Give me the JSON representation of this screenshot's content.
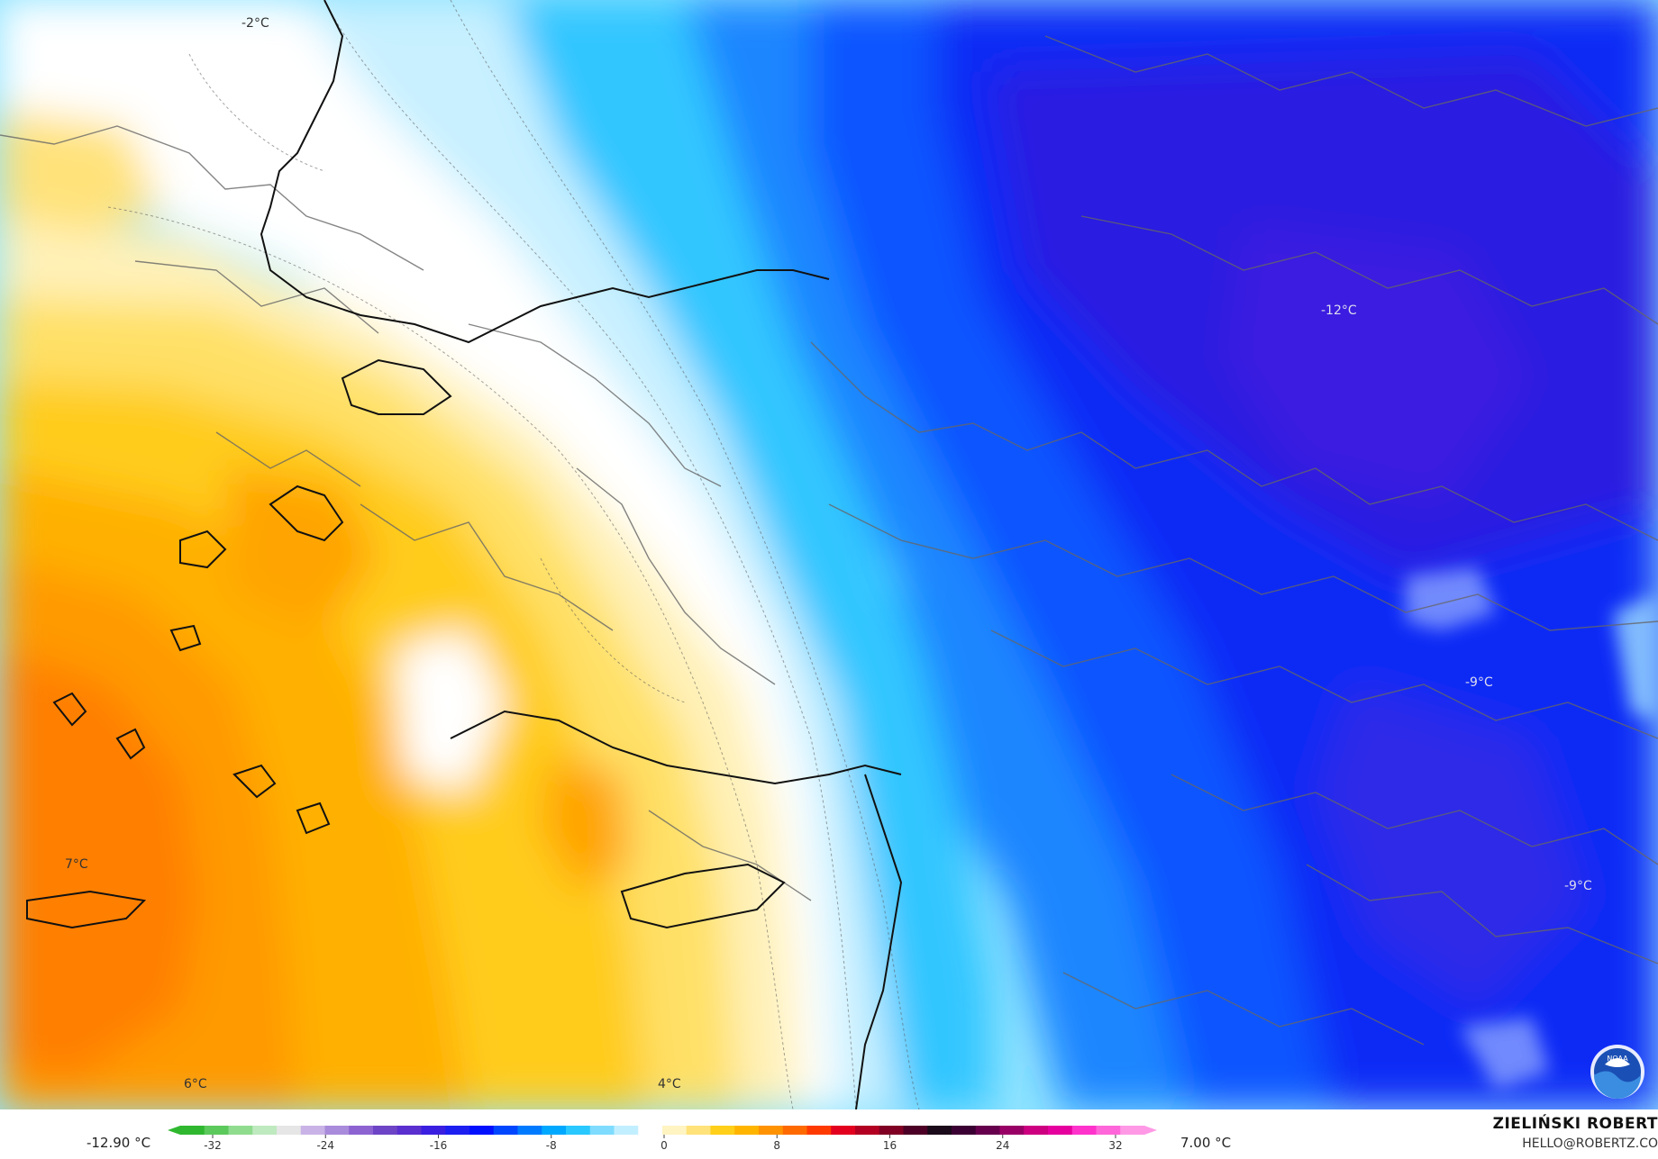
{
  "map": {
    "labels": [
      "-2°C",
      "-12°C",
      "-9°C",
      "-9°C",
      "7°C",
      "6°C",
      "4°C"
    ],
    "logo_text": "NOAA"
  },
  "legend": {
    "min_label": "-12.90 °C",
    "max_label": "7.00 °C",
    "ticks": [
      "-32",
      "-24",
      "-16",
      "-8",
      "0",
      "8",
      "16",
      "24",
      "32"
    ],
    "colors": [
      "#2fb82f",
      "#5cc95c",
      "#8fdc8f",
      "#bfe9bf",
      "#e6e6e6",
      "#c9b3e6",
      "#a98bdb",
      "#8c63d1",
      "#6e44c6",
      "#5a2fcf",
      "#3a1fe0",
      "#1d1ff0",
      "#0010ff",
      "#0046ff",
      "#007bff",
      "#00a8ff",
      "#29c8ff",
      "#7fdcff",
      "#c2efff",
      "#ffffff",
      "#fff4c2",
      "#ffe27a",
      "#ffcf1a",
      "#ffb400",
      "#ff9200",
      "#ff6a00",
      "#ff3a00",
      "#e3001f",
      "#b30022",
      "#800024",
      "#4d0026",
      "#1a0a1a",
      "#3b0033",
      "#66004d",
      "#990066",
      "#cc0080",
      "#e6009e",
      "#ff33cc",
      "#ff66d9",
      "#ff99e6"
    ]
  },
  "credit": {
    "name": "ZIELIŃSKI ROBERT",
    "email": "HELLO@ROBERTZ.CO"
  }
}
